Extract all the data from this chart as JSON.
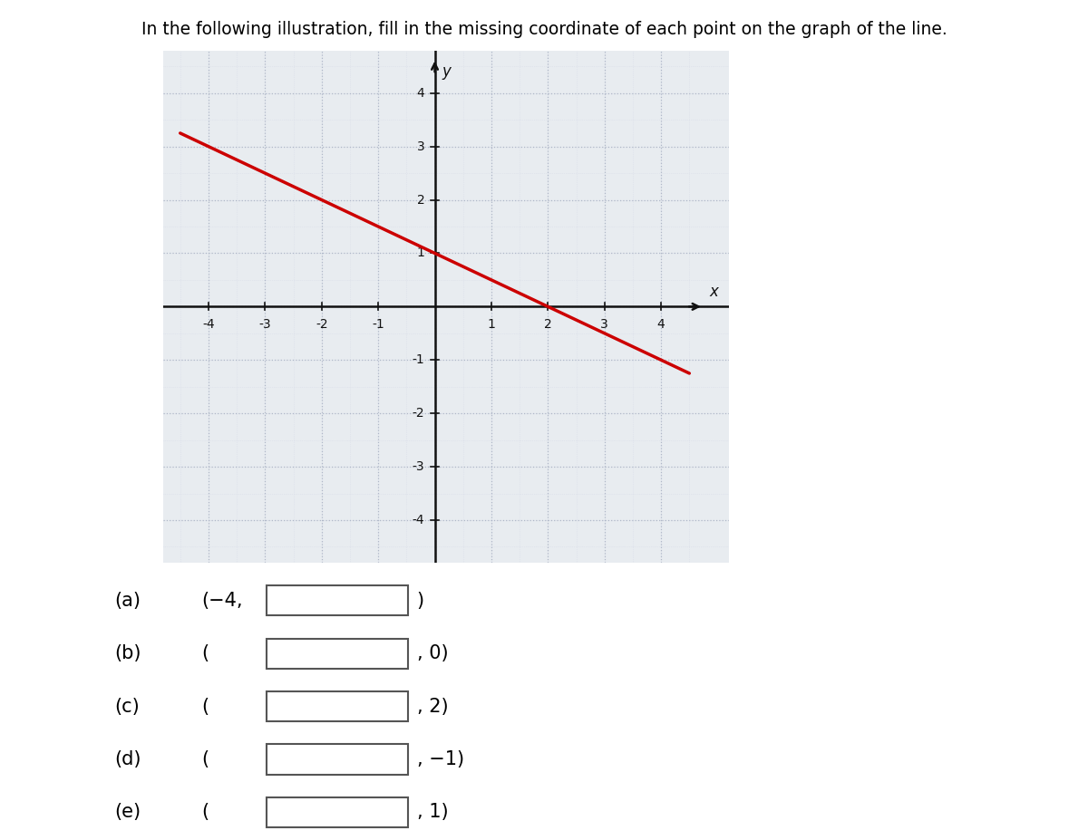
{
  "title": "In the following illustration, fill in the missing coordinate of each point on the graph of the line.",
  "title_fontsize": 13.5,
  "graph_xlim": [
    -4.8,
    5.2
  ],
  "graph_ylim": [
    -4.8,
    4.8
  ],
  "graph_display_xlim": [
    -4.5,
    4.5
  ],
  "graph_display_ylim": [
    -4.5,
    4.5
  ],
  "axis_ticks_x": [
    -4,
    -3,
    -2,
    -1,
    1,
    2,
    3,
    4
  ],
  "axis_ticks_y": [
    -4,
    -3,
    -2,
    -1,
    1,
    2,
    3,
    4
  ],
  "grid_major_color": "#b0b8c8",
  "grid_minor_color": "#d8dce8",
  "background_color": "#e8ecf0",
  "line_color": "#cc0000",
  "line_slope": -0.5,
  "line_intercept": 1.0,
  "axis_color": "#111111",
  "label_x": "x",
  "label_y": "y",
  "questions": [
    {
      "label": "(a)",
      "prefix": "(−4,",
      "suffix": ")"
    },
    {
      "label": "(b)",
      "prefix": "(",
      "suffix": ", 0)"
    },
    {
      "label": "(c)",
      "prefix": "(",
      "suffix": ", 2)"
    },
    {
      "label": "(d)",
      "prefix": "(",
      "suffix": ", −1)"
    },
    {
      "label": "(e)",
      "prefix": "(",
      "suffix": ", 1)"
    }
  ],
  "question_fontsize": 15
}
